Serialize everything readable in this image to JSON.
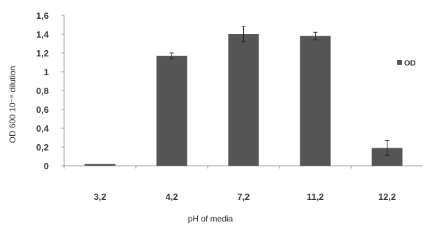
{
  "chart_data": {
    "type": "bar",
    "title": "",
    "xlabel": "pH of media",
    "ylabel": "OD 600 10⁻⁸ dilution",
    "categories": [
      "3,2",
      "4,2",
      "7,2",
      "11,2",
      "12,2"
    ],
    "series": [
      {
        "name": "OD",
        "values": [
          0.02,
          1.17,
          1.4,
          1.38,
          0.19
        ],
        "errors": [
          0.0,
          0.03,
          0.08,
          0.04,
          0.08
        ]
      }
    ],
    "ylim": [
      0,
      1.6
    ],
    "yticks": [
      "0",
      "0,2",
      "0,4",
      "0,6",
      "0,8",
      "1",
      "1,2",
      "1,4",
      "1,6"
    ],
    "grid": false,
    "legend_position": "right",
    "colors": {
      "bar": "#555555",
      "axis": "#999999",
      "text": "#333333"
    }
  }
}
